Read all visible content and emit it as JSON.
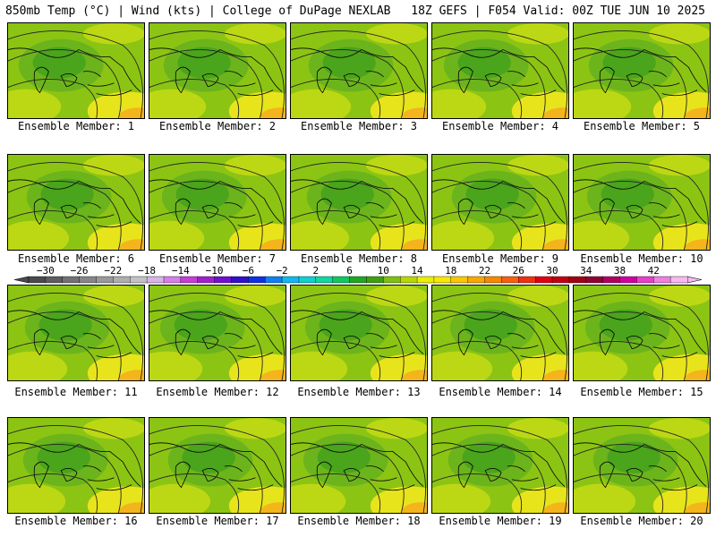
{
  "header": {
    "left_title": "850mb Temp (°C) | Wind (kts) | College of DuPage NEXLAB",
    "right_title": "18Z GEFS | F054 Valid: 00Z TUE JUN 10 2025"
  },
  "panels": [
    {
      "label": "Ensemble Member: 1"
    },
    {
      "label": "Ensemble Member: 2"
    },
    {
      "label": "Ensemble Member: 3"
    },
    {
      "label": "Ensemble Member: 4"
    },
    {
      "label": "Ensemble Member: 5"
    },
    {
      "label": "Ensemble Member: 6"
    },
    {
      "label": "Ensemble Member: 7"
    },
    {
      "label": "Ensemble Member: 8"
    },
    {
      "label": "Ensemble Member: 9"
    },
    {
      "label": "Ensemble Member: 10"
    },
    {
      "label": "Ensemble Member: 11"
    },
    {
      "label": "Ensemble Member: 12"
    },
    {
      "label": "Ensemble Member: 13"
    },
    {
      "label": "Ensemble Member: 14"
    },
    {
      "label": "Ensemble Member: 15"
    },
    {
      "label": "Ensemble Member: 16"
    },
    {
      "label": "Ensemble Member: 17"
    },
    {
      "label": "Ensemble Member: 18"
    },
    {
      "label": "Ensemble Member: 19"
    },
    {
      "label": "Ensemble Member: 20"
    }
  ],
  "colorbar": {
    "tick_labels": [
      "-30",
      "-26",
      "-22",
      "-18",
      "-14",
      "-10",
      "-6",
      "-2",
      "2",
      "6",
      "10",
      "14",
      "18",
      "22",
      "26",
      "30",
      "34",
      "38",
      "42"
    ],
    "colors": [
      "#4a4a4a",
      "#5e5e5e",
      "#727272",
      "#868686",
      "#9a9a9a",
      "#aeaeae",
      "#c2c2c2",
      "#d8b4e8",
      "#d87ee8",
      "#c83cd8",
      "#a020d0",
      "#7010d0",
      "#3010c8",
      "#1030e0",
      "#1080f0",
      "#10b8f0",
      "#10d0d0",
      "#10d8a0",
      "#10c860",
      "#20a820",
      "#40a010",
      "#80c010",
      "#b8d800",
      "#e8f000",
      "#f8e800",
      "#f8c800",
      "#f8a800",
      "#f88800",
      "#f86010",
      "#f03010",
      "#e00010",
      "#c00010",
      "#a00010",
      "#900030",
      "#b00060",
      "#d000a0",
      "#e840c8",
      "#f080e0",
      "#f8b8f0"
    ]
  },
  "colors": {
    "base_green": "#8cc414",
    "dark_green": "#4aa41c",
    "mid_green": "#6cb41c",
    "yellow_green": "#bcd814",
    "yellow": "#e8e41c",
    "orange": "#f4b41c"
  }
}
